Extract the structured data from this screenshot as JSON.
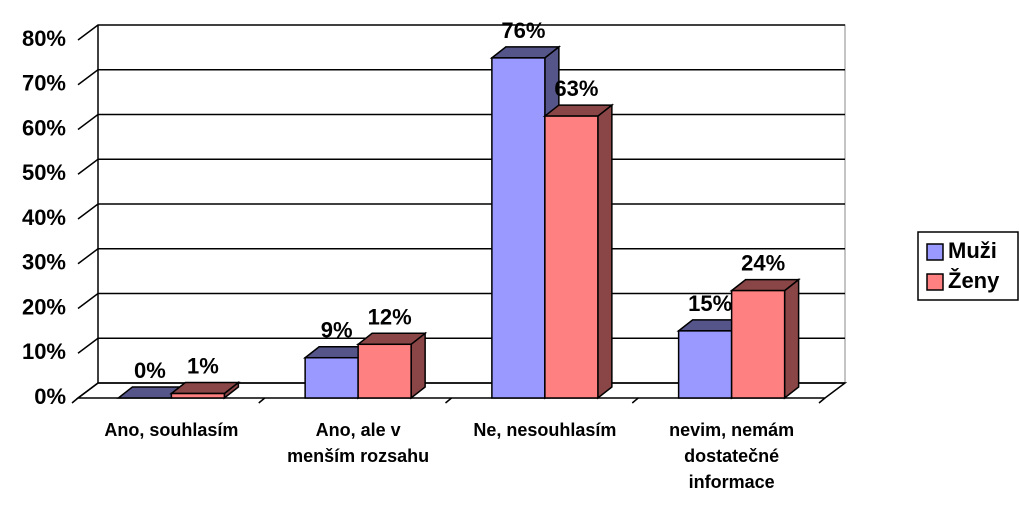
{
  "chart_data": {
    "type": "bar3d",
    "categories": [
      "Ano, souhlasím",
      "Ano, ale v menším rozsahu",
      "Ne, nesouhlasím",
      "nevim, nemám dostatečné informace"
    ],
    "series": [
      {
        "name": "Muži",
        "color": "#9999ff",
        "side": "#55558a",
        "values": [
          0,
          9,
          76,
          15
        ],
        "value_labels": [
          "0%",
          "9%",
          "76%",
          "15%"
        ]
      },
      {
        "name": "Ženy",
        "color": "#ff8080",
        "side": "#8a4646",
        "values": [
          1,
          12,
          63,
          24
        ],
        "value_labels": [
          "1%",
          "12%",
          "63%",
          "24%"
        ]
      }
    ],
    "ylim": [
      0,
      80
    ],
    "yticks": [
      {
        "value": 0,
        "label": "0%"
      },
      {
        "value": 10,
        "label": "10%"
      },
      {
        "value": 20,
        "label": "20%"
      },
      {
        "value": 30,
        "label": "30%"
      },
      {
        "value": 40,
        "label": "40%"
      },
      {
        "value": 50,
        "label": "50%"
      },
      {
        "value": 60,
        "label": "60%"
      },
      {
        "value": 70,
        "label": "70%"
      },
      {
        "value": 80,
        "label": "80%"
      }
    ],
    "grid": true,
    "legend": "right"
  }
}
